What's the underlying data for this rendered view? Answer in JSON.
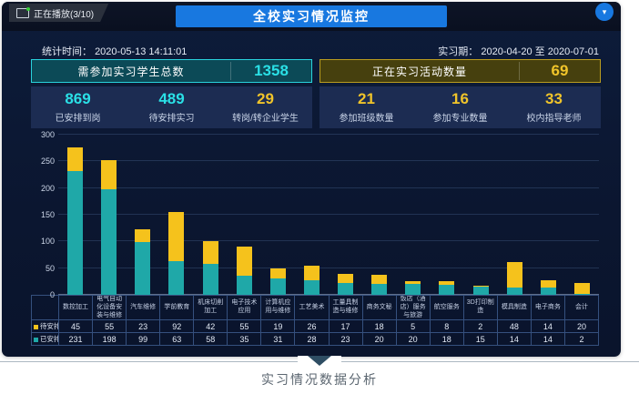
{
  "header": {
    "playing_tab": "正在播放(3/10)",
    "title": "全校实习情况监控",
    "collapse_icon": "▾"
  },
  "info": {
    "stat_time_label": "统计时间：",
    "stat_time_value": "2020-05-13 14:11:01",
    "period_label": "实习期：",
    "period_value": "2020-04-20 至 2020-07-01"
  },
  "students_panel": {
    "header_label": "需参加实习学生总数",
    "header_value": "1358",
    "items": [
      {
        "value": "869",
        "label": "已安排到岗",
        "color": "#2ae0e6"
      },
      {
        "value": "489",
        "label": "待安排实习",
        "color": "#2ae0e6"
      },
      {
        "value": "29",
        "label": "转岗/转企业学生",
        "color": "#f0c42a"
      }
    ]
  },
  "activities_panel": {
    "header_label": "正在实习活动数量",
    "header_value": "69",
    "items": [
      {
        "value": "21",
        "label": "参加班级数量",
        "color": "#f0c42a"
      },
      {
        "value": "16",
        "label": "参加专业数量",
        "color": "#f0c42a"
      },
      {
        "value": "33",
        "label": "校内指导老师",
        "color": "#f0c42a"
      }
    ]
  },
  "chart_data": {
    "type": "bar",
    "stacked": true,
    "title": "",
    "xlabel": "",
    "ylabel": "",
    "ylim": [
      0,
      300
    ],
    "yticks": [
      0,
      50,
      100,
      150,
      200,
      250,
      300
    ],
    "grid": true,
    "legend_position": "table-row-headers",
    "categories": [
      "数控加工",
      "电气自动化设备安装与维修",
      "汽车维修",
      "学前教育",
      "机床切削加工",
      "电子技术应用",
      "计算机应用与维修",
      "工艺美术",
      "工量具制造与维修",
      "商务文秘",
      "饭店（酒店）服务与旅游",
      "航空服务",
      "3D打印制造",
      "模具制造",
      "电子商务",
      "会计"
    ],
    "series": [
      {
        "name": "已安排",
        "color": "#1fa8a8",
        "values": [
          231,
          198,
          99,
          63,
          58,
          35,
          31,
          28,
          23,
          20,
          20,
          18,
          15,
          14,
          14,
          2
        ]
      },
      {
        "name": "待安排",
        "color": "#f5c21c",
        "values": [
          45,
          55,
          23,
          92,
          42,
          55,
          19,
          26,
          17,
          18,
          5,
          8,
          2,
          48,
          14,
          20
        ]
      }
    ]
  },
  "table": {
    "row_series": [
      "待安排",
      "已安排"
    ]
  },
  "footer": {
    "caption": "实习情况数据分析"
  },
  "colors": {
    "accent_blue": "#1878e0",
    "cyan_value": "#2ae0e6",
    "gold_value": "#f0c42a",
    "bar_teal": "#1fa8a8",
    "bar_yellow": "#f5c21c",
    "students_header_bg": "#0c4a57",
    "students_border": "#29d3dc",
    "activities_header_bg": "#46400e",
    "activities_border": "#bb9d1f"
  }
}
